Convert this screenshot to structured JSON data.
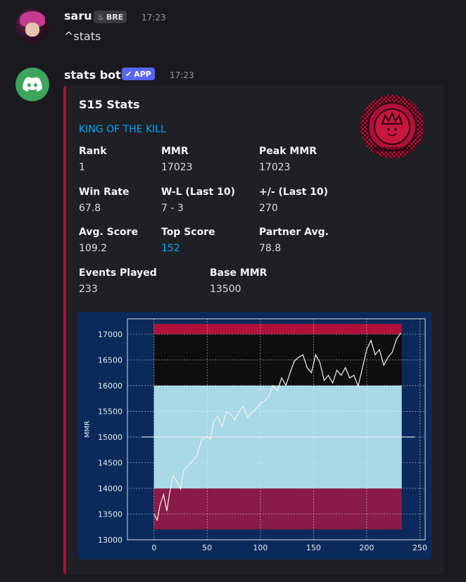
{
  "message1": {
    "author": "saru",
    "guild_tag": "BRE",
    "timestamp": "17:23",
    "content": "^stats"
  },
  "message2": {
    "author": "stats bot",
    "app_tag": "APP",
    "timestamp": "17:23",
    "embed": {
      "title": "S15 Stats",
      "description": "KING OF THE KILL",
      "accent_color": "#b0103a",
      "fields": [
        {
          "name": "Rank",
          "value": "1"
        },
        {
          "name": "MMR",
          "value": "17023"
        },
        {
          "name": "Peak MMR",
          "value": "17023"
        },
        {
          "name": "Win Rate",
          "value": "67.8"
        },
        {
          "name": "W-L (Last 10)",
          "value": "7 - 3"
        },
        {
          "name": "+/- (Last 10)",
          "value": "270"
        },
        {
          "name": "Avg. Score",
          "value": "109.2"
        },
        {
          "name": "Top Score",
          "value": "152"
        },
        {
          "name": "Partner Avg.",
          "value": "78.8"
        },
        {
          "name": "Events Played",
          "value": "233"
        },
        {
          "name": "Base MMR",
          "value": "13500"
        }
      ],
      "thumbnail_text": "MARIOKART"
    }
  },
  "chart_data": {
    "type": "line",
    "title": "",
    "xlabel": "",
    "ylabel": "MMR",
    "xlim": [
      -25,
      255
    ],
    "ylim": [
      13000,
      17300
    ],
    "xticks": [
      0,
      50,
      100,
      150,
      200,
      250
    ],
    "yticks": [
      13000,
      13500,
      14000,
      14500,
      15000,
      15500,
      16000,
      16500,
      17000
    ],
    "grid": true,
    "bands": [
      {
        "from": 17000,
        "to": 17200,
        "color": "#b0103a"
      },
      {
        "from": 16000,
        "to": 17000,
        "color": "#0e0e0e"
      },
      {
        "from": 14000,
        "to": 16000,
        "color": "#a9d8e6"
      },
      {
        "from": 13200,
        "to": 14000,
        "color": "#8a1b46"
      }
    ],
    "reference_line": 15000,
    "series": [
      {
        "values": [
          [
            0,
            13500
          ],
          [
            3,
            13380
          ],
          [
            6,
            13700
          ],
          [
            9,
            13880
          ],
          [
            12,
            13560
          ],
          [
            15,
            13950
          ],
          [
            18,
            14250
          ],
          [
            21,
            14150
          ],
          [
            25,
            13990
          ],
          [
            28,
            14350
          ],
          [
            32,
            14450
          ],
          [
            36,
            14530
          ],
          [
            40,
            14620
          ],
          [
            45,
            14950
          ],
          [
            50,
            15010
          ],
          [
            53,
            14950
          ],
          [
            56,
            15300
          ],
          [
            60,
            15400
          ],
          [
            64,
            15200
          ],
          [
            68,
            15500
          ],
          [
            72,
            15450
          ],
          [
            76,
            15330
          ],
          [
            80,
            15500
          ],
          [
            84,
            15600
          ],
          [
            88,
            15380
          ],
          [
            92,
            15480
          ],
          [
            96,
            15550
          ],
          [
            100,
            15650
          ],
          [
            104,
            15700
          ],
          [
            108,
            15800
          ],
          [
            112,
            16000
          ],
          [
            116,
            15900
          ],
          [
            120,
            16150
          ],
          [
            124,
            16000
          ],
          [
            128,
            16250
          ],
          [
            132,
            16480
          ],
          [
            136,
            16550
          ],
          [
            140,
            16600
          ],
          [
            144,
            16350
          ],
          [
            148,
            16250
          ],
          [
            152,
            16600
          ],
          [
            156,
            16450
          ],
          [
            160,
            16100
          ],
          [
            164,
            16200
          ],
          [
            168,
            16050
          ],
          [
            172,
            16300
          ],
          [
            176,
            16200
          ],
          [
            180,
            16350
          ],
          [
            184,
            16150
          ],
          [
            188,
            16200
          ],
          [
            192,
            15990
          ],
          [
            196,
            16350
          ],
          [
            200,
            16700
          ],
          [
            204,
            16880
          ],
          [
            208,
            16600
          ],
          [
            212,
            16700
          ],
          [
            216,
            16400
          ],
          [
            220,
            16550
          ],
          [
            224,
            16650
          ],
          [
            228,
            16900
          ],
          [
            232,
            17023
          ]
        ]
      }
    ]
  }
}
